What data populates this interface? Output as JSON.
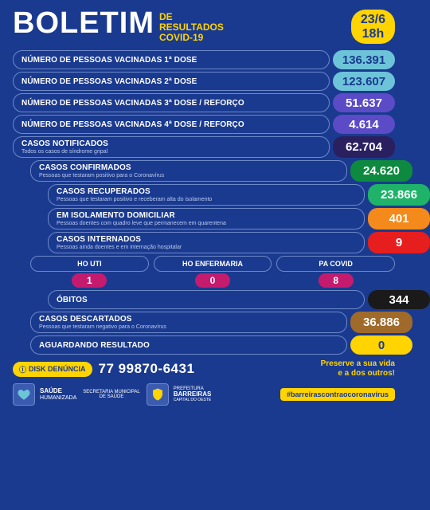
{
  "header": {
    "title": "BOLETIM",
    "subtitle_line1": "DE",
    "subtitle_line2": "RESULTADOS",
    "subtitle_line3": "COVID-19",
    "date": "23/6",
    "time": "18h"
  },
  "colors": {
    "bg": "#1a3a8f",
    "yellow": "#ffd400"
  },
  "rows": [
    {
      "label": "NÚMERO DE PESSOAS VACINADAS 1ª DOSE",
      "sublabel": "",
      "value": "136.391",
      "pill_bg": "#6dc4d9",
      "pill_fg": "#1a3a8f",
      "indent": 0
    },
    {
      "label": "NÚMERO DE PESSOAS VACINADAS 2ª DOSE",
      "sublabel": "",
      "value": "123.607",
      "pill_bg": "#6dc4d9",
      "pill_fg": "#1a3a8f",
      "indent": 0
    },
    {
      "label": "NÚMERO DE PESSOAS VACINADAS 3ª DOSE / REFORÇO",
      "sublabel": "",
      "value": "51.637",
      "pill_bg": "#5b4bc6",
      "pill_fg": "#ffffff",
      "indent": 0
    },
    {
      "label": "NÚMERO DE PESSOAS VACINADAS 4ª DOSE / REFORÇO",
      "sublabel": "",
      "value": "4.614",
      "pill_bg": "#5b4bc6",
      "pill_fg": "#ffffff",
      "indent": 0
    },
    {
      "label": "CASOS NOTIFICADOS",
      "sublabel": "Todos os casos de síndrome gripal",
      "value": "62.704",
      "pill_bg": "#2a2060",
      "pill_fg": "#ffffff",
      "indent": 0
    },
    {
      "label": "CASOS CONFIRMADOS",
      "sublabel": "Pessoas que testaram positivo para o Coronavírus",
      "value": "24.620",
      "pill_bg": "#0d8a3f",
      "pill_fg": "#ffffff",
      "indent": 1
    },
    {
      "label": "CASOS RECUPERADOS",
      "sublabel": "Pessoas que testaram positivo e receberam alta do isolamento",
      "value": "23.866",
      "pill_bg": "#1fb36a",
      "pill_fg": "#ffffff",
      "indent": 2
    },
    {
      "label": "EM ISOLAMENTO DOMICILIAR",
      "sublabel": "Pessoas doentes com quadro leve que permanecem em quarentena",
      "value": "401",
      "pill_bg": "#f48a1c",
      "pill_fg": "#ffffff",
      "indent": 2
    },
    {
      "label": "CASOS INTERNADOS",
      "sublabel": "Pessoas ainda doentes e em internação hospitalar",
      "value": "9",
      "pill_bg": "#e61e1e",
      "pill_fg": "#ffffff",
      "indent": 2
    }
  ],
  "hospitalization": {
    "cols": [
      {
        "label": "HO UTI",
        "value": "1",
        "bg": "#c41b6f"
      },
      {
        "label": "HO ENFERMARIA",
        "value": "0",
        "bg": "#c41b6f"
      },
      {
        "label": "PA COVID",
        "value": "8",
        "bg": "#c41b6f"
      }
    ]
  },
  "rows_after": [
    {
      "label": "ÓBITOS",
      "sublabel": "",
      "value": "344",
      "pill_bg": "#1a1a1a",
      "pill_fg": "#ffffff",
      "indent": 2
    },
    {
      "label": "CASOS DESCARTADOS",
      "sublabel": "Pessoas que testaram negativo para o Coronavírus",
      "value": "36.886",
      "pill_bg": "#a06a2a",
      "pill_fg": "#ffffff",
      "indent": 1
    },
    {
      "label": "AGUARDANDO RESULTADO",
      "sublabel": "",
      "value": "0",
      "pill_bg": "#ffd400",
      "pill_fg": "#1a3a8f",
      "indent": 1
    }
  ],
  "disk": {
    "label": "DISK DENÚNCIA",
    "phone": "77 99870-6431"
  },
  "preserve": {
    "line1": "Preserve a sua vida",
    "line2": "e a dos outros!"
  },
  "footer": {
    "logo1_l1": "SAÚDE",
    "logo1_l2": "HUMANIZADA",
    "sec_l1": "SECRETARIA MUNICIPAL",
    "sec_l2": "DE SAÚDE",
    "logo2_l1": "PREFEITURA",
    "logo2_l2": "BARREIRAS",
    "logo2_l3": "CAPITAL DO OESTE",
    "hashtag": "#barreirascontraocoronavírus"
  }
}
